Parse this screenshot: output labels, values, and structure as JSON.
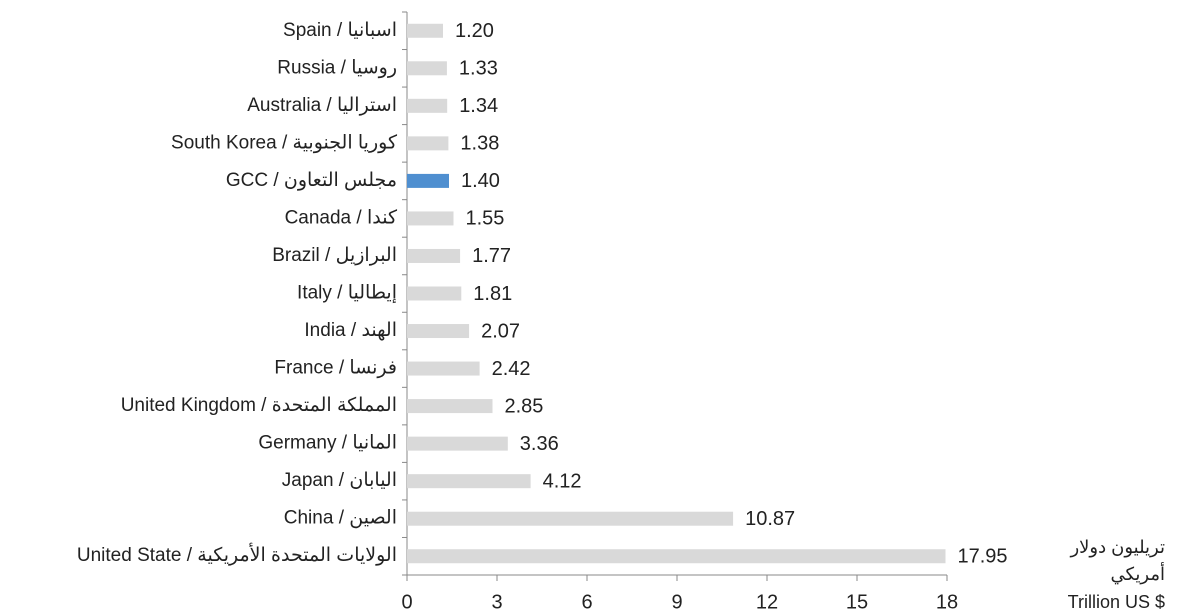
{
  "chart_data": {
    "type": "bar",
    "orientation": "horizontal",
    "categories": [
      "Spain / اسبانيا",
      "Russia / روسيا",
      "Australia / استراليا",
      "South Korea / كوريا الجنوبية",
      "GCC / مجلس التعاون",
      "Canada / كندا",
      "Brazil / البرازيل",
      "Italy / إيطاليا",
      "India / الهند",
      "France / فرنسا",
      "United Kingdom / المملكة المتحدة",
      "Germany / المانيا",
      "Japan / اليابان",
      "China / الصين",
      "United State / الولايات المتحدة الأمريكية"
    ],
    "values": [
      1.2,
      1.33,
      1.34,
      1.38,
      1.4,
      1.55,
      1.77,
      1.81,
      2.07,
      2.42,
      2.85,
      3.36,
      4.12,
      10.87,
      17.95
    ],
    "value_labels": [
      "1.20",
      "1.33",
      "1.34",
      "1.38",
      "1.40",
      "1.55",
      "1.77",
      "1.81",
      "2.07",
      "2.42",
      "2.85",
      "3.36",
      "4.12",
      "10.87",
      "17.95"
    ],
    "colors": [
      "#d9d9d9",
      "#d9d9d9",
      "#d9d9d9",
      "#d9d9d9",
      "#4f8fd0",
      "#d9d9d9",
      "#d9d9d9",
      "#d9d9d9",
      "#d9d9d9",
      "#d9d9d9",
      "#d9d9d9",
      "#d9d9d9",
      "#d9d9d9",
      "#d9d9d9",
      "#d9d9d9"
    ],
    "xlim": [
      0,
      18
    ],
    "xticks": [
      0,
      3,
      6,
      9,
      12,
      15,
      18
    ],
    "x_label": [
      "تريليون دولار",
      "أمريكي",
      "Trillion US $"
    ]
  }
}
